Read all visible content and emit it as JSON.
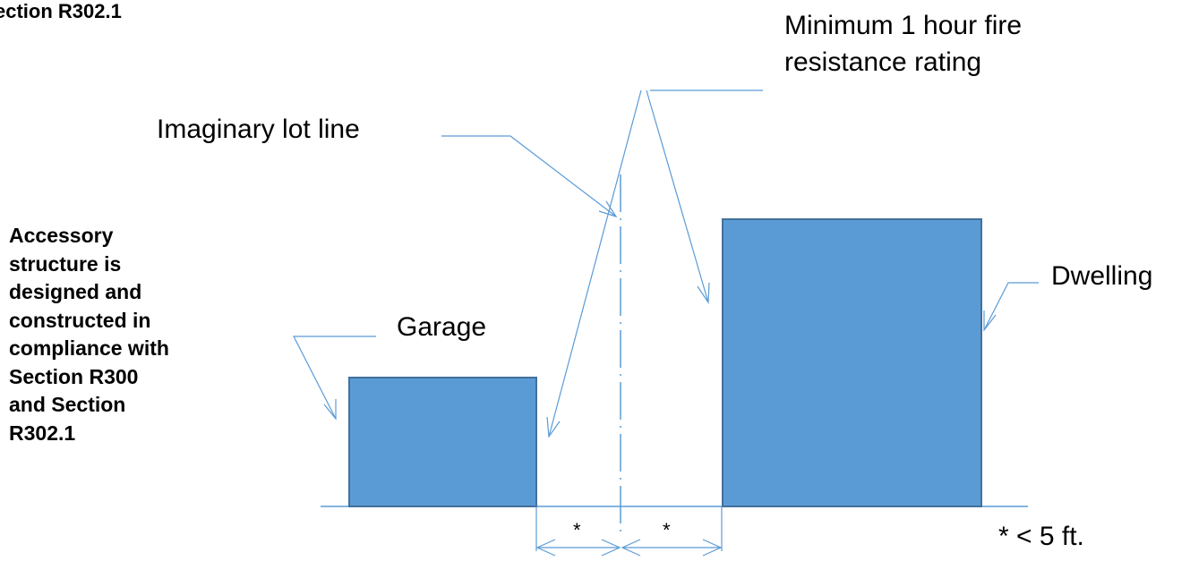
{
  "labels": {
    "section_top": "ection R302.1",
    "fire_rating": "Minimum 1 hour fire\nresistance rating",
    "lot_line": "Imaginary lot line",
    "accessory_note": "Accessory\nstructure is\ndesigned and\nconstructed in\ncompliance with\nSection R300\nand Section\nR302.1",
    "garage": "Garage",
    "dwelling": "Dwelling",
    "separation_left": "*",
    "separation_right": "*",
    "footnote": "* < 5 ft."
  },
  "colors": {
    "building_fill": "#5B9BD5",
    "building_stroke": "#41719C",
    "line": "#5B9BD5"
  }
}
